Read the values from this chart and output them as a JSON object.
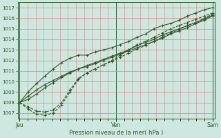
{
  "background_color": "#cce8e0",
  "grid_color_major": "#e08080",
  "grid_color_minor": "#f0b0b0",
  "line_color": "#2d5a27",
  "xlabel": "Pression niveau de la mer( hPa )",
  "ylim": [
    1006.5,
    1017.5
  ],
  "yticks": [
    1007,
    1008,
    1009,
    1010,
    1011,
    1012,
    1013,
    1014,
    1015,
    1016,
    1017
  ],
  "xtick_labels": [
    "Jeu",
    "Ven",
    "Sam"
  ],
  "xtick_positions": [
    0.0,
    1.0,
    2.0
  ],
  "n_days": 3,
  "n_points_per_day": 8,
  "series": [
    [
      1008.0,
      1009.0,
      1009.8,
      1010.5,
      1011.2,
      1011.8,
      1012.2,
      1012.5,
      1012.5,
      1012.8,
      1013.0,
      1013.2,
      1013.5,
      1013.8,
      1014.2,
      1014.5,
      1015.0,
      1015.3,
      1015.5,
      1015.8,
      1016.2,
      1016.5,
      1016.8,
      1017.0
    ],
    [
      1008.0,
      1007.4,
      1006.9,
      1006.8,
      1007.0,
      1007.8,
      1009.0,
      1010.2,
      1010.8,
      1011.2,
      1011.6,
      1012.0,
      1012.5,
      1013.0,
      1013.5,
      1013.8,
      1014.2,
      1014.6,
      1015.0,
      1015.3,
      1015.6,
      1015.9,
      1016.2,
      1016.5
    ],
    [
      1008.0,
      1008.3,
      1008.8,
      1009.4,
      1009.9,
      1010.4,
      1010.8,
      1011.2,
      1011.5,
      1011.8,
      1012.1,
      1012.4,
      1012.7,
      1013.0,
      1013.4,
      1013.7,
      1014.0,
      1014.4,
      1014.7,
      1015.0,
      1015.3,
      1015.6,
      1015.9,
      1016.3
    ],
    [
      1008.0,
      1008.6,
      1009.2,
      1009.7,
      1010.1,
      1010.5,
      1010.9,
      1011.2,
      1011.4,
      1011.7,
      1012.0,
      1012.3,
      1012.6,
      1012.9,
      1013.2,
      1013.5,
      1013.8,
      1014.1,
      1014.5,
      1014.8,
      1015.1,
      1015.5,
      1015.8,
      1016.2
    ],
    [
      1008.0,
      1007.6,
      1007.2,
      1007.1,
      1007.3,
      1008.0,
      1009.2,
      1010.3,
      1010.8,
      1011.2,
      1011.6,
      1011.9,
      1012.3,
      1012.7,
      1013.1,
      1013.4,
      1013.8,
      1014.2,
      1014.6,
      1014.9,
      1015.3,
      1015.6,
      1016.0,
      1016.4
    ]
  ],
  "series_styles": [
    {
      "ls": "-",
      "lw": 0.8,
      "marker": "+",
      "ms": 3.5
    },
    {
      "ls": "--",
      "lw": 0.8,
      "marker": "+",
      "ms": 3.5
    },
    {
      "ls": "-",
      "lw": 0.8,
      "marker": "+",
      "ms": 3.5
    },
    {
      "ls": "-",
      "lw": 0.8,
      "marker": "+",
      "ms": 3.5
    },
    {
      "ls": "--",
      "lw": 0.8,
      "marker": "+",
      "ms": 3.5
    }
  ],
  "n_points": 24,
  "x_start": 0,
  "x_end": 2,
  "minor_xticks_per_day": 8,
  "figsize": [
    3.2,
    2.0
  ],
  "dpi": 100
}
